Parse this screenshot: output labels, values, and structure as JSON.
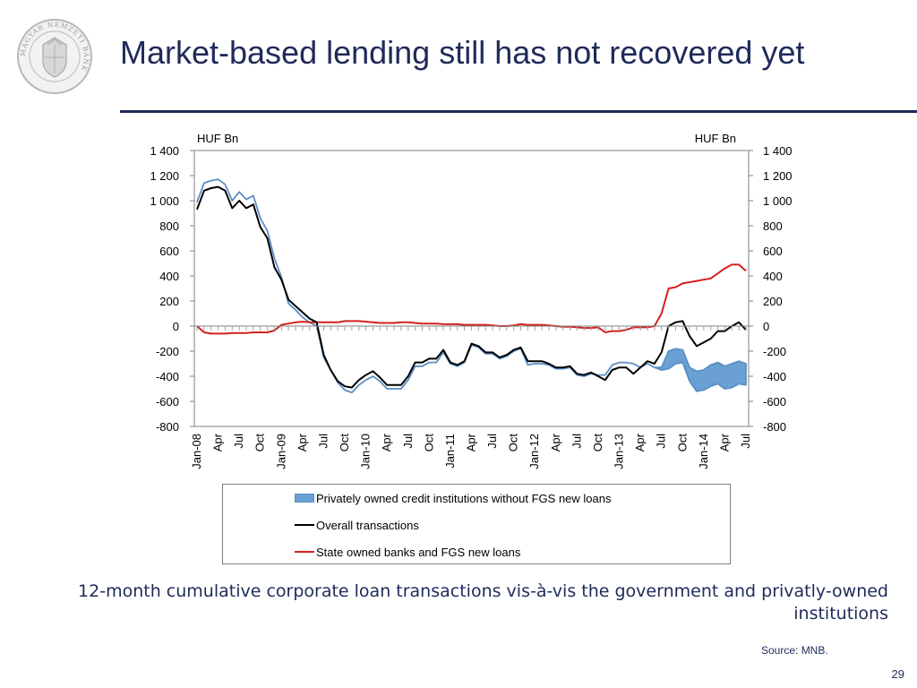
{
  "slide": {
    "title": "Market-based lending still has not recovered yet",
    "caption": "12-month cumulative corporate loan transactions vis-à-vis the government and privatly-owned institutions",
    "source": "Source: MNB.",
    "page_number": "29",
    "logo_text": "MAGYAR NEMZETI BANK"
  },
  "colors": {
    "title": "#1f2a5a",
    "private_band": "#6aa0d4",
    "private_band_edge": "#5a8fc4",
    "overall": "#000000",
    "state": "#d42020"
  },
  "chart_data": {
    "type": "line",
    "title": "",
    "ylabel_left": "HUF Bn",
    "ylabel_right": "HUF Bn",
    "ylim": [
      -800,
      1400
    ],
    "yticks": [
      "1 400",
      "1 200",
      "1 000",
      "800",
      "600",
      "400",
      "200",
      "0",
      "-200",
      "-400",
      "-600",
      "-800"
    ],
    "ytick_values": [
      1400,
      1200,
      1000,
      800,
      600,
      400,
      200,
      0,
      -200,
      -400,
      -600,
      -800
    ],
    "x_start": "Jan-08",
    "x_end": "Sep-14",
    "xtick_labels": [
      "Jan-08",
      "Apr",
      "Jul",
      "Oct",
      "Jan-09",
      "Apr",
      "Jul",
      "Oct",
      "Jan-10",
      "Apr",
      "Jul",
      "Oct",
      "Jan-11",
      "Apr",
      "Jul",
      "Oct",
      "Jan-12",
      "Apr",
      "Jul",
      "Oct",
      "Jan-13",
      "Apr",
      "Jul",
      "Oct",
      "Jan-14",
      "Apr",
      "Jul"
    ],
    "legend": [
      {
        "label": "Privately owned credit institutions without FGS new loans",
        "kind": "area"
      },
      {
        "label": "Overall transactions",
        "kind": "line"
      },
      {
        "label": "State owned banks and FGS new loans",
        "kind": "line"
      }
    ],
    "series": [
      {
        "name": "Overall transactions",
        "values": [
          930,
          1080,
          1100,
          1110,
          1080,
          940,
          1000,
          940,
          970,
          790,
          700,
          470,
          370,
          210,
          160,
          110,
          60,
          30,
          -230,
          -350,
          -440,
          -480,
          -490,
          -430,
          -390,
          -360,
          -410,
          -470,
          -470,
          -470,
          -400,
          -290,
          -290,
          -260,
          -260,
          -190,
          -290,
          -310,
          -280,
          -140,
          -160,
          -210,
          -210,
          -250,
          -230,
          -190,
          -170,
          -280,
          -280,
          -280,
          -300,
          -330,
          -330,
          -320,
          -380,
          -390,
          -370,
          -400,
          -430,
          -350,
          -330,
          -330,
          -380,
          -330,
          -280,
          -300,
          -210,
          0,
          30,
          40,
          -80,
          -160,
          -130,
          -100,
          -40,
          -40,
          0,
          30,
          -30
        ]
      },
      {
        "name": "Privately owned credit institutions without FGS new loans",
        "upper": [
          990,
          1140,
          1160,
          1170,
          1130,
          1000,
          1070,
          1010,
          1040,
          860,
          760,
          540,
          390,
          180,
          130,
          70,
          30,
          0,
          -250,
          -350,
          -450,
          -510,
          -530,
          -470,
          -430,
          -400,
          -440,
          -500,
          -500,
          -500,
          -430,
          -320,
          -320,
          -290,
          -290,
          -210,
          -300,
          -320,
          -290,
          -150,
          -170,
          -220,
          -220,
          -260,
          -240,
          -200,
          -180,
          -310,
          -300,
          -300,
          -310,
          -340,
          -340,
          -330,
          -390,
          -400,
          -380,
          -390,
          -390,
          -310,
          -290,
          -290,
          -300,
          -330,
          -300,
          -330,
          -330,
          -200,
          -180,
          -190,
          -330,
          -360,
          -350,
          -310,
          -290,
          -320,
          -300,
          -280,
          -300
        ],
        "lower": [
          990,
          1140,
          1160,
          1170,
          1130,
          1000,
          1070,
          1010,
          1040,
          860,
          760,
          540,
          390,
          180,
          130,
          70,
          30,
          0,
          -250,
          -350,
          -450,
          -510,
          -530,
          -470,
          -430,
          -400,
          -440,
          -500,
          -500,
          -500,
          -430,
          -320,
          -320,
          -290,
          -290,
          -210,
          -300,
          -320,
          -290,
          -150,
          -170,
          -220,
          -220,
          -260,
          -240,
          -200,
          -180,
          -310,
          -300,
          -300,
          -310,
          -340,
          -340,
          -330,
          -390,
          -400,
          -380,
          -390,
          -390,
          -310,
          -290,
          -290,
          -300,
          -330,
          -300,
          -330,
          -350,
          -340,
          -300,
          -290,
          -440,
          -520,
          -510,
          -480,
          -460,
          -500,
          -490,
          -460,
          -470
        ]
      },
      {
        "name": "State owned banks and FGS new loans",
        "values": [
          0,
          -50,
          -60,
          -60,
          -60,
          -55,
          -55,
          -55,
          -50,
          -50,
          -50,
          -35,
          10,
          20,
          30,
          35,
          30,
          30,
          30,
          30,
          30,
          40,
          40,
          40,
          35,
          30,
          25,
          25,
          25,
          30,
          30,
          25,
          20,
          20,
          20,
          15,
          15,
          15,
          10,
          10,
          10,
          10,
          5,
          0,
          0,
          5,
          15,
          10,
          10,
          10,
          5,
          0,
          -5,
          -5,
          -10,
          -15,
          -15,
          -10,
          -50,
          -40,
          -40,
          -30,
          -10,
          -10,
          -10,
          0,
          100,
          300,
          310,
          340,
          350,
          360,
          370,
          380,
          420,
          460,
          490,
          490,
          440
        ]
      }
    ]
  }
}
